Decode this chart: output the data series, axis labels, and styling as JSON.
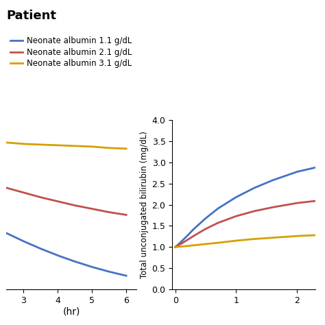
{
  "title": "Patient",
  "title_fontweight": "bold",
  "title_fontsize": 13,
  "colors": {
    "blue": "#4472C4",
    "red": "#C0504D",
    "yellow": "#D4A000"
  },
  "legend_labels": [
    "Neonate albumin 1.1 g/dL",
    "Neonate albumin 2.1 g/dL",
    "Neonate albumin 3.1 g/dL"
  ],
  "left_plot": {
    "xlabel": "(hr)",
    "xlim": [
      2.5,
      6.3
    ],
    "xticks": [
      3,
      4,
      5,
      6
    ],
    "ylim": [
      0.55,
      3.05
    ],
    "curve_blue": {
      "x": [
        2.5,
        3.0,
        3.5,
        4.0,
        4.5,
        5.0,
        5.5,
        6.0
      ],
      "y": [
        1.38,
        1.26,
        1.15,
        1.05,
        0.96,
        0.88,
        0.81,
        0.75
      ]
    },
    "curve_red": {
      "x": [
        2.5,
        3.0,
        3.5,
        4.0,
        4.5,
        5.0,
        5.5,
        6.0
      ],
      "y": [
        2.05,
        1.98,
        1.91,
        1.85,
        1.79,
        1.74,
        1.69,
        1.65
      ]
    },
    "curve_yellow": {
      "x": [
        2.5,
        3.0,
        3.5,
        4.0,
        4.5,
        5.0,
        5.5,
        6.0
      ],
      "y": [
        2.72,
        2.7,
        2.69,
        2.68,
        2.67,
        2.66,
        2.64,
        2.63
      ]
    }
  },
  "right_plot": {
    "ylabel": "Total unconjugated bilirubin (mg/dL)",
    "xlim": [
      -0.05,
      2.3
    ],
    "xticks": [
      0,
      1,
      2
    ],
    "ylim": [
      0,
      4
    ],
    "yticks": [
      0,
      0.5,
      1.0,
      1.5,
      2.0,
      2.5,
      3.0,
      3.5,
      4.0
    ],
    "curve_blue": {
      "x": [
        0.0,
        0.05,
        0.1,
        0.2,
        0.3,
        0.5,
        0.7,
        1.0,
        1.3,
        1.6,
        2.0,
        2.3
      ],
      "y": [
        1.0,
        1.06,
        1.13,
        1.27,
        1.42,
        1.68,
        1.91,
        2.18,
        2.4,
        2.58,
        2.78,
        2.88
      ]
    },
    "curve_red": {
      "x": [
        0.0,
        0.05,
        0.1,
        0.2,
        0.3,
        0.5,
        0.7,
        1.0,
        1.3,
        1.6,
        2.0,
        2.3
      ],
      "y": [
        1.0,
        1.04,
        1.08,
        1.17,
        1.26,
        1.43,
        1.57,
        1.73,
        1.85,
        1.94,
        2.04,
        2.09
      ]
    },
    "curve_yellow": {
      "x": [
        0.0,
        0.05,
        0.1,
        0.2,
        0.3,
        0.5,
        0.7,
        1.0,
        1.3,
        1.6,
        2.0,
        2.3
      ],
      "y": [
        1.0,
        1.005,
        1.01,
        1.025,
        1.04,
        1.07,
        1.1,
        1.15,
        1.19,
        1.22,
        1.26,
        1.28
      ]
    }
  },
  "background_color": "#ffffff",
  "linewidth": 2.0
}
